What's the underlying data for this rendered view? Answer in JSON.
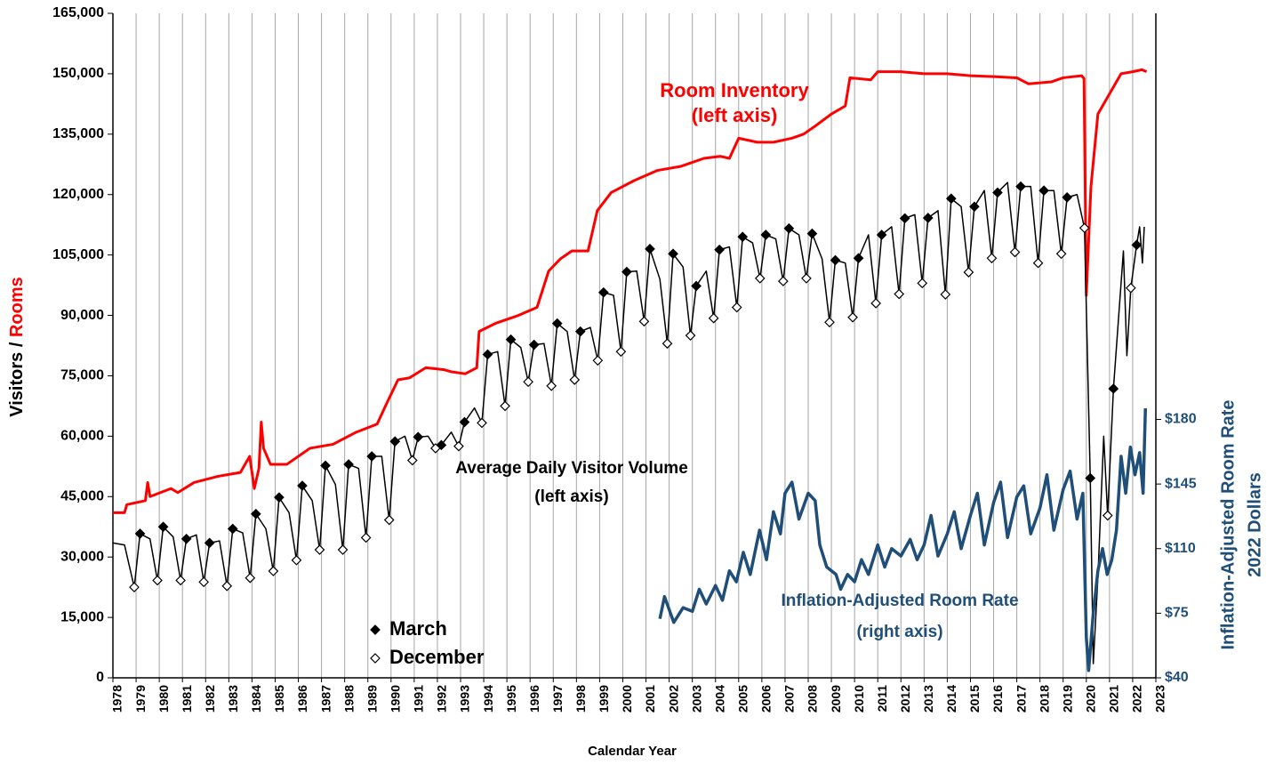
{
  "chart_data": {
    "type": "line",
    "xlabel": "Calendar Year",
    "ylabel": "Visitors /",
    "ylabel_highlight": "Rooms",
    "ylabel_highlight_color": "#ff0000",
    "y2label": [
      "Inflation-Adjusted Room Rate",
      "2022 Dollars"
    ],
    "y2label_color": "#1f4e79",
    "grid": "x",
    "xlim": [
      1978,
      2023
    ],
    "xticks": [
      1978,
      1979,
      1980,
      1981,
      1982,
      1983,
      1984,
      1985,
      1986,
      1987,
      1988,
      1989,
      1990,
      1991,
      1992,
      1993,
      1994,
      1995,
      1996,
      1997,
      1998,
      1999,
      2000,
      2001,
      2002,
      2003,
      2004,
      2005,
      2006,
      2007,
      2008,
      2009,
      2010,
      2011,
      2012,
      2013,
      2014,
      2015,
      2016,
      2017,
      2018,
      2019,
      2020,
      2021,
      2022,
      2023
    ],
    "ylim": [
      0,
      165000
    ],
    "yticks": [
      0,
      {
        "value": 15000,
        "label": "15,000"
      },
      {
        "value": 30000,
        "label": "30,000"
      },
      {
        "value": 45000,
        "label": "45,000"
      },
      {
        "value": 60000,
        "label": "60,000"
      },
      {
        "value": 75000,
        "label": "75,000"
      },
      {
        "value": 90000,
        "label": "90,000"
      },
      {
        "value": 105000,
        "label": "105,000"
      },
      {
        "value": 120000,
        "label": "120,000"
      },
      {
        "value": 135000,
        "label": "135,000"
      },
      {
        "value": 150000,
        "label": "150,000"
      },
      {
        "value": 165000,
        "label": "165,000"
      }
    ],
    "y2lim": [
      40,
      400
    ],
    "y2ticks": [
      {
        "value": 40,
        "label": "$40"
      },
      {
        "value": 75,
        "label": "$75"
      },
      {
        "value": 110,
        "label": "$110"
      },
      {
        "value": 145,
        "label": "$145"
      },
      {
        "value": 180,
        "label": "$180"
      }
    ],
    "series": [
      {
        "name": "Room Inventory",
        "note": "(left axis)",
        "color": "#ff0000",
        "x": [
          1978.0,
          1978.5,
          1978.6,
          1979.4,
          1979.5,
          1979.6,
          1980.5,
          1980.8,
          1981.5,
          1982.5,
          1983.5,
          1983.9,
          1984.1,
          1984.3,
          1984.4,
          1984.5,
          1984.8,
          1985.5,
          1986.5,
          1987.5,
          1988.5,
          1989.4,
          1989.8,
          1990.3,
          1990.8,
          1991.5,
          1992.3,
          1992.6,
          1993.2,
          1993.7,
          1993.8,
          1994.5,
          1995.5,
          1996.3,
          1996.8,
          1997.3,
          1997.8,
          1998.5,
          1998.9,
          1999.5,
          2000.5,
          2001.5,
          2002.5,
          2003.5,
          2004.2,
          2004.6,
          2005.0,
          2005.8,
          2006.5,
          2007.3,
          2007.8,
          2008.3,
          2009.0,
          2009.6,
          2009.8,
          2010.7,
          2011.0,
          2012.0,
          2013.0,
          2014.0,
          2015.0,
          2016.0,
          2017.0,
          2017.5,
          2018.5,
          2019.0,
          2019.8,
          2019.9,
          2020.0,
          2020.2,
          2020.5,
          2021.0,
          2021.5,
          2022.0,
          2022.4,
          2022.6
        ],
        "values": [
          41000,
          41000,
          43000,
          44000,
          48500,
          45000,
          47000,
          46000,
          48500,
          50000,
          51000,
          55000,
          47000,
          52000,
          63500,
          57000,
          53000,
          53000,
          57000,
          58000,
          61000,
          63000,
          68000,
          74000,
          74500,
          77000,
          76500,
          76000,
          75500,
          77000,
          86000,
          88000,
          90000,
          92000,
          101000,
          104000,
          106000,
          106000,
          116000,
          120500,
          123500,
          126000,
          127000,
          129000,
          129500,
          129000,
          134000,
          133000,
          133000,
          134000,
          135000,
          137000,
          140000,
          142000,
          149000,
          148500,
          150500,
          150500,
          150000,
          150000,
          149500,
          149300,
          149000,
          147500,
          148000,
          149000,
          149500,
          148800,
          95000,
          122000,
          140000,
          145000,
          150000,
          150500,
          151000,
          150500
        ]
      },
      {
        "name": "Average Daily Visitor Volume",
        "note": "(left axis)",
        "color": "#000000",
        "x": [
          1978.0,
          1978.5,
          1978.92,
          1979.17,
          1979.6,
          1979.92,
          1980.17,
          1980.6,
          1980.92,
          1981.17,
          1981.6,
          1981.92,
          1982.17,
          1982.6,
          1982.92,
          1983.17,
          1983.6,
          1983.92,
          1984.17,
          1984.6,
          1984.92,
          1985.17,
          1985.6,
          1985.92,
          1986.17,
          1986.6,
          1986.92,
          1987.17,
          1987.6,
          1987.92,
          1988.17,
          1988.6,
          1988.92,
          1989.17,
          1989.6,
          1989.92,
          1990.17,
          1990.6,
          1990.92,
          1991.17,
          1991.6,
          1991.92,
          1992.17,
          1992.6,
          1992.92,
          1993.17,
          1993.6,
          1993.92,
          1994.17,
          1994.6,
          1994.92,
          1995.17,
          1995.6,
          1995.92,
          1996.17,
          1996.6,
          1996.92,
          1997.17,
          1997.6,
          1997.92,
          1998.17,
          1998.6,
          1998.92,
          1999.17,
          1999.6,
          1999.92,
          2000.17,
          2000.6,
          2000.92,
          2001.17,
          2001.6,
          2001.92,
          2002.17,
          2002.6,
          2002.92,
          2003.17,
          2003.6,
          2003.92,
          2004.17,
          2004.6,
          2004.92,
          2005.17,
          2005.6,
          2005.92,
          2006.17,
          2006.6,
          2006.92,
          2007.17,
          2007.6,
          2007.92,
          2008.17,
          2008.6,
          2008.92,
          2009.17,
          2009.6,
          2009.92,
          2010.17,
          2010.6,
          2010.92,
          2011.17,
          2011.6,
          2011.92,
          2012.17,
          2012.6,
          2012.92,
          2013.17,
          2013.6,
          2013.92,
          2014.17,
          2014.6,
          2014.92,
          2015.17,
          2015.6,
          2015.92,
          2016.17,
          2016.6,
          2016.92,
          2017.17,
          2017.6,
          2017.92,
          2018.17,
          2018.6,
          2018.92,
          2019.17,
          2019.6,
          2019.92,
          2020.17,
          2020.3,
          2020.5,
          2020.75,
          2020.92,
          2021.17,
          2021.6,
          2021.75,
          2021.92,
          2022.17,
          2022.3,
          2022.42,
          2022.5
        ],
        "values": [
          33500,
          33000,
          22500,
          35800,
          34500,
          24200,
          37500,
          35000,
          24200,
          34500,
          35500,
          23800,
          33500,
          34000,
          22800,
          37000,
          36000,
          24800,
          40700,
          37000,
          26500,
          44800,
          41000,
          29200,
          47700,
          44000,
          31800,
          52700,
          48000,
          31800,
          53000,
          52000,
          34800,
          55000,
          55000,
          39200,
          58700,
          60000,
          54000,
          59800,
          60000,
          57000,
          57800,
          61000,
          57500,
          63500,
          67000,
          63300,
          80300,
          81000,
          67500,
          84000,
          82000,
          73500,
          82700,
          83000,
          72500,
          88000,
          86000,
          74000,
          86000,
          87000,
          78800,
          95700,
          95000,
          81000,
          100800,
          101000,
          88500,
          106500,
          99000,
          83000,
          105300,
          102000,
          85000,
          97300,
          101000,
          89300,
          106300,
          107000,
          92000,
          109500,
          108000,
          99200,
          110000,
          109000,
          98500,
          111600,
          110000,
          99200,
          110300,
          104000,
          88300,
          103700,
          103000,
          89500,
          104200,
          110000,
          93000,
          110000,
          112000,
          95300,
          114100,
          115000,
          98000,
          114200,
          116000,
          95200,
          119000,
          117000,
          100700,
          117000,
          121000,
          104200,
          120500,
          123000,
          105700,
          122000,
          122000,
          103000,
          121000,
          121000,
          105300,
          119300,
          120000,
          111700,
          49600,
          3500,
          25000,
          60000,
          40300,
          71800,
          106000,
          80000,
          96800,
          107500,
          112000,
          103000,
          112000
        ]
      },
      {
        "name": "Inflation-Adjusted Room Rate",
        "note": "(right axis)",
        "color": "#1f4e79",
        "axis": "y2",
        "x": [
          2001.6,
          2001.8,
          2002.2,
          2002.6,
          2003.0,
          2003.3,
          2003.6,
          2004.0,
          2004.3,
          2004.6,
          2004.9,
          2005.2,
          2005.5,
          2005.9,
          2006.2,
          2006.5,
          2006.8,
          2007.0,
          2007.3,
          2007.6,
          2008.0,
          2008.3,
          2008.5,
          2008.8,
          2009.2,
          2009.4,
          2009.7,
          2010.0,
          2010.3,
          2010.6,
          2011.0,
          2011.3,
          2011.6,
          2012.0,
          2012.4,
          2012.7,
          2013.0,
          2013.3,
          2013.6,
          2014.0,
          2014.3,
          2014.6,
          2015.0,
          2015.3,
          2015.6,
          2016.0,
          2016.3,
          2016.6,
          2017.0,
          2017.3,
          2017.6,
          2018.0,
          2018.3,
          2018.6,
          2019.0,
          2019.3,
          2019.6,
          2019.85,
          2020.0,
          2020.1,
          2020.3,
          2020.5,
          2020.7,
          2020.9,
          2021.1,
          2021.3,
          2021.5,
          2021.7,
          2021.9,
          2022.1,
          2022.3,
          2022.45,
          2022.55
        ],
        "values": [
          72,
          84,
          70,
          78,
          76,
          88,
          80,
          90,
          82,
          98,
          92,
          108,
          96,
          120,
          104,
          130,
          118,
          140,
          146,
          126,
          140,
          136,
          112,
          100,
          96,
          88,
          96,
          92,
          104,
          96,
          112,
          100,
          110,
          106,
          115,
          104,
          112,
          128,
          106,
          118,
          130,
          110,
          128,
          140,
          112,
          135,
          146,
          116,
          138,
          144,
          118,
          132,
          150,
          120,
          142,
          152,
          126,
          140,
          62,
          44,
          75,
          98,
          110,
          96,
          104,
          120,
          160,
          140,
          165,
          150,
          162,
          140,
          186
        ]
      },
      {
        "name": "March",
        "color": "#000000",
        "marker": "diamond",
        "filled": true,
        "x": [
          1979.17,
          1980.17,
          1981.17,
          1982.17,
          1983.17,
          1984.17,
          1985.17,
          1986.17,
          1987.17,
          1988.17,
          1989.17,
          1990.17,
          1991.17,
          1992.17,
          1993.17,
          1994.17,
          1995.17,
          1996.17,
          1997.17,
          1998.17,
          1999.17,
          2000.17,
          2001.17,
          2002.17,
          2003.17,
          2004.17,
          2005.17,
          2006.17,
          2007.17,
          2008.17,
          2009.17,
          2010.17,
          2011.17,
          2012.17,
          2013.17,
          2014.17,
          2015.17,
          2016.17,
          2017.17,
          2018.17,
          2019.17,
          2020.17,
          2021.17,
          2022.17
        ],
        "values": [
          35800,
          37500,
          34500,
          33500,
          37000,
          40700,
          44800,
          47700,
          52700,
          53000,
          55000,
          58700,
          59800,
          57800,
          63500,
          80300,
          84000,
          82700,
          88000,
          86000,
          95700,
          100800,
          106500,
          105300,
          97300,
          106300,
          109500,
          110000,
          111600,
          110300,
          103700,
          104200,
          110000,
          114100,
          114200,
          119000,
          117000,
          120500,
          122000,
          121000,
          119300,
          49600,
          71800,
          107500
        ]
      },
      {
        "name": "December",
        "color": "#000000",
        "marker": "diamond",
        "filled": false,
        "x": [
          1978.92,
          1979.92,
          1980.92,
          1981.92,
          1982.92,
          1983.92,
          1984.92,
          1985.92,
          1986.92,
          1987.92,
          1988.92,
          1989.92,
          1990.92,
          1991.92,
          1992.92,
          1993.92,
          1994.92,
          1995.92,
          1996.92,
          1997.92,
          1998.92,
          1999.92,
          2000.92,
          2001.92,
          2002.92,
          2003.92,
          2004.92,
          2005.92,
          2006.92,
          2007.92,
          2008.92,
          2009.92,
          2010.92,
          2011.92,
          2012.92,
          2013.92,
          2014.92,
          2015.92,
          2016.92,
          2017.92,
          2018.92,
          2019.92,
          2020.92,
          2021.92
        ],
        "values": [
          22500,
          24200,
          24200,
          23800,
          22800,
          24800,
          26500,
          29200,
          31800,
          31800,
          34800,
          39200,
          54000,
          57000,
          57500,
          63300,
          67500,
          73500,
          72500,
          74000,
          78800,
          81000,
          88500,
          83000,
          85000,
          89300,
          92000,
          99200,
          98500,
          99200,
          88300,
          89500,
          93000,
          95300,
          98000,
          95200,
          100700,
          104200,
          105700,
          103000,
          105300,
          111700,
          40300,
          96800
        ]
      }
    ]
  }
}
